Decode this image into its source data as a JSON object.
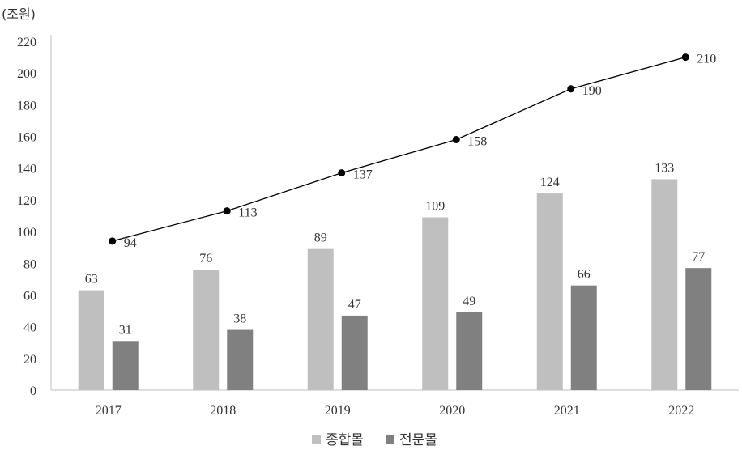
{
  "chart_data": {
    "type": "bar",
    "unit_label": "(조원)",
    "categories": [
      "2017",
      "2018",
      "2019",
      "2020",
      "2021",
      "2022"
    ],
    "ylim": [
      0,
      220
    ],
    "yticks": [
      0,
      20,
      40,
      60,
      80,
      100,
      120,
      140,
      160,
      180,
      200,
      220
    ],
    "grid": false,
    "legend_position": "bottom-center",
    "series": [
      {
        "name": "종합몰",
        "kind": "bar",
        "color": "#bfbfbf",
        "values": [
          63,
          76,
          89,
          109,
          124,
          133
        ]
      },
      {
        "name": "전문몰",
        "kind": "bar",
        "color": "#808080",
        "values": [
          31,
          38,
          47,
          49,
          66,
          77
        ]
      },
      {
        "kind": "line",
        "color": "#000000",
        "values": [
          94,
          113,
          137,
          158,
          190,
          210
        ]
      }
    ]
  }
}
